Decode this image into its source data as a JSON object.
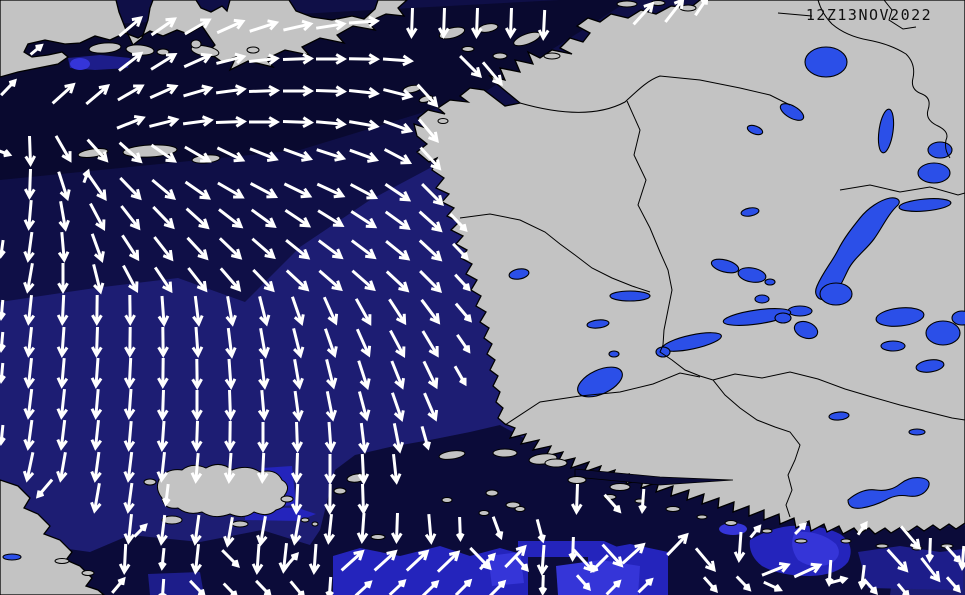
{
  "map": {
    "timestamp": "12Z13NOV2022"
  },
  "colors": {
    "land": "#c3c3c3",
    "coastline": "#000000",
    "border_line": "#000000",
    "sea_dark": "#0f0f47",
    "sea_darkest": "#09092f",
    "sea_mid": "#1d1d73",
    "sea_deep_zone": "#0b0b39",
    "sea_bright": "#2424bc",
    "sea_brighter": "#3535d8",
    "lake": "#2b4fe8",
    "arrow": "#ffffff",
    "text": "#111111"
  },
  "wind_field": {
    "arrow_color": "#ffffff",
    "arrows": [
      [
        130,
        27,
        -40
      ],
      [
        163,
        27,
        -35
      ],
      [
        197,
        27,
        -30
      ],
      [
        230,
        27,
        -24
      ],
      [
        263,
        27,
        -18
      ],
      [
        297,
        27,
        -13
      ],
      [
        330,
        26,
        -9
      ],
      [
        363,
        22,
        -4
      ],
      [
        412,
        22,
        92
      ],
      [
        444,
        22,
        92
      ],
      [
        477,
        22,
        92
      ],
      [
        511,
        22,
        92
      ],
      [
        544,
        24,
        93
      ],
      [
        643,
        14,
        -48
      ],
      [
        674,
        11,
        -52
      ],
      [
        701,
        7,
        -56,
        20
      ],
      [
        36,
        50,
        -40,
        14
      ],
      [
        130,
        62,
        -38
      ],
      [
        163,
        62,
        -32
      ],
      [
        197,
        61,
        -24
      ],
      [
        230,
        60,
        -14
      ],
      [
        263,
        60,
        -6
      ],
      [
        297,
        59,
        -2
      ],
      [
        330,
        59,
        0
      ],
      [
        363,
        59,
        1
      ],
      [
        397,
        60,
        4
      ],
      [
        470,
        66,
        45
      ],
      [
        492,
        73,
        50
      ],
      [
        8,
        88,
        -46,
        20
      ],
      [
        63,
        94,
        -42
      ],
      [
        97,
        95,
        -40
      ],
      [
        130,
        93,
        -30
      ],
      [
        163,
        92,
        -24
      ],
      [
        197,
        92,
        -16
      ],
      [
        230,
        91,
        -8
      ],
      [
        263,
        91,
        -2
      ],
      [
        297,
        91,
        0
      ],
      [
        330,
        91,
        2
      ],
      [
        363,
        92,
        6
      ],
      [
        397,
        93,
        14
      ],
      [
        427,
        95,
        48
      ],
      [
        130,
        123,
        -22
      ],
      [
        163,
        123,
        -14
      ],
      [
        197,
        122,
        -8
      ],
      [
        230,
        122,
        -2
      ],
      [
        263,
        122,
        0
      ],
      [
        297,
        122,
        2
      ],
      [
        330,
        123,
        5
      ],
      [
        363,
        124,
        10
      ],
      [
        397,
        126,
        20
      ],
      [
        428,
        130,
        50
      ],
      [
        2,
        152,
        20,
        16
      ],
      [
        30,
        150,
        88
      ],
      [
        63,
        148,
        60
      ],
      [
        97,
        150,
        48
      ],
      [
        130,
        152,
        42
      ],
      [
        163,
        153,
        35
      ],
      [
        197,
        154,
        30
      ],
      [
        230,
        154,
        26
      ],
      [
        263,
        154,
        22
      ],
      [
        297,
        154,
        20
      ],
      [
        330,
        154,
        18
      ],
      [
        363,
        155,
        20
      ],
      [
        397,
        156,
        28
      ],
      [
        430,
        158,
        48
      ],
      [
        86,
        177,
        -70,
        12
      ],
      [
        30,
        183,
        92
      ],
      [
        63,
        185,
        72
      ],
      [
        97,
        187,
        55
      ],
      [
        130,
        188,
        46
      ],
      [
        163,
        189,
        40
      ],
      [
        197,
        190,
        35
      ],
      [
        230,
        190,
        30
      ],
      [
        263,
        190,
        28
      ],
      [
        297,
        190,
        26
      ],
      [
        330,
        190,
        25
      ],
      [
        363,
        191,
        28
      ],
      [
        397,
        192,
        34
      ],
      [
        432,
        194,
        45
      ],
      [
        30,
        214,
        95
      ],
      [
        63,
        215,
        80
      ],
      [
        97,
        216,
        62
      ],
      [
        130,
        217,
        52
      ],
      [
        163,
        217,
        46
      ],
      [
        197,
        218,
        42
      ],
      [
        230,
        218,
        38
      ],
      [
        263,
        218,
        36
      ],
      [
        297,
        218,
        34
      ],
      [
        330,
        218,
        32
      ],
      [
        363,
        219,
        33
      ],
      [
        397,
        220,
        36
      ],
      [
        430,
        221,
        42
      ],
      [
        458,
        222,
        46,
        22
      ],
      [
        2,
        248,
        98,
        16
      ],
      [
        30,
        246,
        98
      ],
      [
        63,
        246,
        85
      ],
      [
        97,
        247,
        70
      ],
      [
        130,
        247,
        57
      ],
      [
        163,
        248,
        52
      ],
      [
        197,
        248,
        47
      ],
      [
        230,
        248,
        44
      ],
      [
        263,
        248,
        41
      ],
      [
        297,
        249,
        39
      ],
      [
        330,
        249,
        37
      ],
      [
        363,
        249,
        37
      ],
      [
        397,
        250,
        39
      ],
      [
        430,
        250,
        43
      ],
      [
        460,
        251,
        46,
        20
      ],
      [
        30,
        277,
        100
      ],
      [
        63,
        277,
        90
      ],
      [
        97,
        278,
        76
      ],
      [
        130,
        278,
        62
      ],
      [
        163,
        279,
        56
      ],
      [
        197,
        279,
        52
      ],
      [
        230,
        279,
        49
      ],
      [
        263,
        280,
        46
      ],
      [
        297,
        280,
        43
      ],
      [
        330,
        280,
        41
      ],
      [
        363,
        280,
        41
      ],
      [
        397,
        281,
        43
      ],
      [
        430,
        281,
        45
      ],
      [
        462,
        282,
        47,
        20
      ],
      [
        2,
        309,
        95,
        18
      ],
      [
        30,
        309,
        96
      ],
      [
        63,
        309,
        93
      ],
      [
        97,
        309,
        91
      ],
      [
        130,
        309,
        89
      ],
      [
        163,
        310,
        86
      ],
      [
        197,
        310,
        83
      ],
      [
        230,
        310,
        80
      ],
      [
        263,
        310,
        76
      ],
      [
        297,
        310,
        71
      ],
      [
        330,
        310,
        66
      ],
      [
        363,
        311,
        61
      ],
      [
        397,
        311,
        57
      ],
      [
        430,
        311,
        53
      ],
      [
        463,
        312,
        50,
        22
      ],
      [
        2,
        341,
        95,
        18
      ],
      [
        30,
        341,
        96
      ],
      [
        63,
        341,
        94
      ],
      [
        97,
        341,
        92
      ],
      [
        130,
        341,
        91
      ],
      [
        163,
        341,
        89
      ],
      [
        197,
        341,
        86
      ],
      [
        230,
        342,
        83
      ],
      [
        263,
        342,
        80
      ],
      [
        297,
        342,
        76
      ],
      [
        330,
        342,
        71
      ],
      [
        363,
        342,
        66
      ],
      [
        397,
        343,
        62
      ],
      [
        430,
        343,
        59
      ],
      [
        463,
        343,
        55,
        20
      ],
      [
        2,
        372,
        95,
        18
      ],
      [
        30,
        372,
        96
      ],
      [
        63,
        372,
        95
      ],
      [
        97,
        372,
        94
      ],
      [
        130,
        372,
        93
      ],
      [
        163,
        372,
        91
      ],
      [
        197,
        373,
        89
      ],
      [
        230,
        373,
        86
      ],
      [
        263,
        373,
        83
      ],
      [
        297,
        373,
        80
      ],
      [
        330,
        373,
        76
      ],
      [
        363,
        374,
        72
      ],
      [
        397,
        374,
        68
      ],
      [
        430,
        374,
        64
      ],
      [
        460,
        375,
        60,
        20
      ],
      [
        30,
        403,
        97
      ],
      [
        63,
        403,
        96
      ],
      [
        97,
        403,
        95
      ],
      [
        130,
        403,
        94
      ],
      [
        163,
        404,
        92
      ],
      [
        197,
        404,
        90
      ],
      [
        230,
        404,
        88
      ],
      [
        263,
        404,
        85
      ],
      [
        297,
        405,
        82
      ],
      [
        330,
        405,
        79
      ],
      [
        363,
        405,
        75
      ],
      [
        397,
        406,
        71
      ],
      [
        430,
        406,
        67
      ],
      [
        2,
        434,
        96,
        18
      ],
      [
        30,
        434,
        98
      ],
      [
        63,
        434,
        97
      ],
      [
        97,
        434,
        96
      ],
      [
        130,
        435,
        95
      ],
      [
        163,
        435,
        94
      ],
      [
        197,
        435,
        92
      ],
      [
        230,
        435,
        91
      ],
      [
        263,
        436,
        90
      ],
      [
        297,
        436,
        88
      ],
      [
        330,
        436,
        86
      ],
      [
        363,
        437,
        83
      ],
      [
        397,
        437,
        79
      ],
      [
        425,
        437,
        74,
        22
      ],
      [
        30,
        466,
        102
      ],
      [
        63,
        466,
        100
      ],
      [
        97,
        466,
        98
      ],
      [
        130,
        466,
        97
      ],
      [
        163,
        466,
        96
      ],
      [
        197,
        467,
        95
      ],
      [
        230,
        467,
        94
      ],
      [
        263,
        467,
        93
      ],
      [
        297,
        467,
        92
      ],
      [
        330,
        468,
        90
      ],
      [
        363,
        468,
        87
      ],
      [
        395,
        468,
        84
      ],
      [
        45,
        488,
        130,
        22
      ],
      [
        97,
        497,
        100
      ],
      [
        130,
        497,
        98
      ],
      [
        167,
        494,
        97,
        20
      ],
      [
        297,
        498,
        93
      ],
      [
        330,
        498,
        91
      ],
      [
        363,
        498,
        88
      ],
      [
        577,
        498,
        92
      ],
      [
        612,
        503,
        48,
        22
      ],
      [
        643,
        500,
        94,
        22
      ],
      [
        130,
        528,
        96
      ],
      [
        140,
        531,
        -45,
        16
      ],
      [
        163,
        529,
        97
      ],
      [
        197,
        529,
        98
      ],
      [
        230,
        531,
        100
      ],
      [
        263,
        530,
        100
      ],
      [
        297,
        529,
        100
      ],
      [
        330,
        528,
        96
      ],
      [
        363,
        527,
        94
      ],
      [
        397,
        527,
        92
      ],
      [
        430,
        528,
        85
      ],
      [
        460,
        528,
        88,
        22
      ],
      [
        497,
        527,
        70,
        22
      ],
      [
        540,
        530,
        75,
        22
      ],
      [
        573,
        548,
        92,
        22
      ],
      [
        600,
        563,
        135,
        22
      ],
      [
        755,
        532,
        -50,
        14
      ],
      [
        800,
        529,
        -45,
        14
      ],
      [
        862,
        529,
        -55,
        14
      ],
      [
        910,
        537,
        50
      ],
      [
        930,
        549,
        92,
        22
      ],
      [
        953,
        554,
        48,
        20
      ],
      [
        125,
        558,
        93
      ],
      [
        163,
        558,
        96,
        20
      ],
      [
        197,
        558,
        96
      ],
      [
        230,
        558,
        45,
        22
      ],
      [
        258,
        558,
        94
      ],
      [
        285,
        557,
        96
      ],
      [
        291,
        561,
        -48,
        18
      ],
      [
        315,
        558,
        94
      ],
      [
        352,
        561,
        -42
      ],
      [
        385,
        561,
        -42
      ],
      [
        417,
        561,
        -43
      ],
      [
        448,
        562,
        -44
      ],
      [
        480,
        558,
        46
      ],
      [
        487,
        562,
        -46,
        20
      ],
      [
        515,
        557,
        -46
      ],
      [
        521,
        563,
        48,
        18
      ],
      [
        543,
        559,
        94
      ],
      [
        583,
        560,
        48
      ],
      [
        612,
        555,
        48
      ],
      [
        633,
        554,
        -42
      ],
      [
        677,
        545,
        -46
      ],
      [
        705,
        559,
        50
      ],
      [
        740,
        546,
        94
      ],
      [
        775,
        570,
        -22
      ],
      [
        807,
        571,
        -25
      ],
      [
        830,
        572,
        94,
        24
      ],
      [
        863,
        576,
        97,
        22
      ],
      [
        897,
        560,
        48
      ],
      [
        930,
        569,
        52
      ],
      [
        963,
        557,
        94,
        22
      ],
      [
        118,
        586,
        -50,
        18
      ],
      [
        163,
        589,
        94,
        20
      ],
      [
        197,
        588,
        46,
        20
      ],
      [
        230,
        590,
        46,
        18
      ],
      [
        263,
        588,
        46,
        20
      ],
      [
        297,
        589,
        50,
        20
      ],
      [
        330,
        587,
        94,
        20
      ],
      [
        363,
        589,
        -42,
        20
      ],
      [
        397,
        588,
        -43,
        20
      ],
      [
        430,
        589,
        -44,
        20
      ],
      [
        463,
        588,
        -45,
        20
      ],
      [
        497,
        589,
        -45,
        20
      ],
      [
        543,
        584,
        92,
        18
      ],
      [
        583,
        582,
        48,
        18
      ],
      [
        613,
        588,
        -45,
        18
      ],
      [
        645,
        586,
        -44,
        18
      ],
      [
        710,
        584,
        48,
        18
      ],
      [
        743,
        583,
        46,
        18
      ],
      [
        772,
        586,
        25,
        18
      ],
      [
        837,
        581,
        -15,
        18
      ],
      [
        870,
        586,
        48,
        18
      ],
      [
        903,
        590,
        50,
        16
      ],
      [
        953,
        584,
        48,
        18
      ]
    ]
  }
}
